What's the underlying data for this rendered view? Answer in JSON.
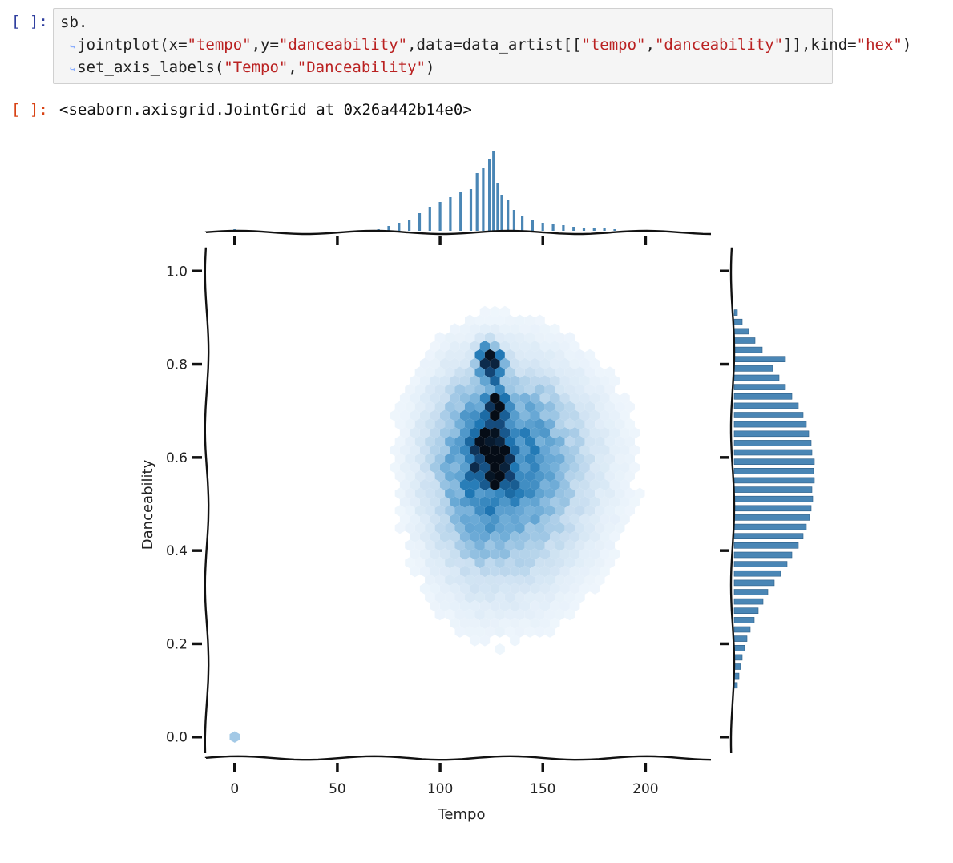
{
  "cell": {
    "in_prompt": "[ ]:",
    "out_prompt": "[ ]:",
    "code_lines": [
      [
        {
          "t": "sb.",
          "k": "plain"
        }
      ],
      [
        {
          "t": "jointplot(x=",
          "k": "plain"
        },
        {
          "t": "\"tempo\"",
          "k": "str"
        },
        {
          "t": ",y=",
          "k": "plain"
        },
        {
          "t": "\"danceability\"",
          "k": "str"
        },
        {
          "t": ",data=data_artist[[",
          "k": "plain"
        },
        {
          "t": "\"tempo\"",
          "k": "str"
        },
        {
          "t": ",",
          "k": "plain"
        },
        {
          "t": "\"danceability\"",
          "k": "str"
        },
        {
          "t": "]],kind=",
          "k": "plain"
        },
        {
          "t": "\"hex\"",
          "k": "str"
        },
        {
          "t": ")",
          "k": "plain"
        }
      ],
      [
        {
          "t": "set_axis_labels(",
          "k": "plain"
        },
        {
          "t": "\"Tempo\"",
          "k": "str"
        },
        {
          "t": ",",
          "k": "plain"
        },
        {
          "t": "\"Danceability\"",
          "k": "str"
        },
        {
          "t": ")",
          "k": "plain"
        }
      ]
    ],
    "continuation_marker": "↪",
    "output_text": "<seaborn.axisgrid.JointGrid at 0x26a442b14e0>"
  },
  "chart_data": {
    "type": "heatmap",
    "subtype": "seaborn jointplot (hexbin with marginal histograms), xkcd style",
    "xlabel": "Tempo",
    "ylabel": "Danceability",
    "xlim": [
      -12,
      233
    ],
    "ylim": [
      -0.04,
      1.04
    ],
    "xticks": [
      0,
      50,
      100,
      150,
      200
    ],
    "xtick_labels": [
      "0",
      "50",
      "100",
      "150",
      "200"
    ],
    "yticks": [
      0.0,
      0.2,
      0.4,
      0.6,
      0.8,
      1.0
    ],
    "ytick_labels": [
      "0.0",
      "0.2",
      "0.4",
      "0.6",
      "0.8",
      "1.0"
    ],
    "hex_color": "#1f77b4",
    "marginal_color": "#4a86b5",
    "density_peak": {
      "tempo": 125,
      "danceability": 0.6
    },
    "density_spread": {
      "tempo_left": 20,
      "tempo_right": 30,
      "danceability_low": 0.17,
      "danceability_high": 0.13
    },
    "hot_spots": [
      {
        "tempo": 123,
        "danceability": 0.81,
        "weight": 1.0
      },
      {
        "tempo": 126,
        "danceability": 0.8,
        "weight": 1.0
      },
      {
        "tempo": 127,
        "danceability": 0.7,
        "weight": 0.9
      },
      {
        "tempo": 129,
        "danceability": 0.58,
        "weight": 0.9
      },
      {
        "tempo": 125,
        "danceability": 0.66,
        "weight": 0.7
      },
      {
        "tempo": 122,
        "danceability": 0.6,
        "weight": 0.6
      }
    ],
    "outlier_cluster": {
      "tempo": 0,
      "danceability": 0.0,
      "intensity": 0.35
    },
    "top_marginal": {
      "bins_tempo": [
        0,
        70,
        75,
        80,
        85,
        90,
        95,
        100,
        105,
        110,
        115,
        118,
        121,
        124,
        126,
        128,
        130,
        133,
        136,
        140,
        145,
        150,
        155,
        160,
        165,
        170,
        175,
        180,
        185
      ],
      "counts_rel": [
        0.02,
        0.02,
        0.06,
        0.1,
        0.14,
        0.22,
        0.3,
        0.36,
        0.42,
        0.48,
        0.52,
        0.72,
        0.78,
        0.9,
        1.0,
        0.6,
        0.45,
        0.38,
        0.26,
        0.18,
        0.14,
        0.1,
        0.08,
        0.07,
        0.05,
        0.04,
        0.04,
        0.03,
        0.02
      ]
    },
    "right_marginal": {
      "bins_danceability": [
        0.11,
        0.13,
        0.15,
        0.17,
        0.19,
        0.21,
        0.23,
        0.25,
        0.27,
        0.29,
        0.31,
        0.33,
        0.35,
        0.37,
        0.39,
        0.41,
        0.43,
        0.45,
        0.47,
        0.49,
        0.51,
        0.53,
        0.55,
        0.57,
        0.59,
        0.61,
        0.63,
        0.65,
        0.67,
        0.69,
        0.71,
        0.73,
        0.75,
        0.77,
        0.79,
        0.81,
        0.83,
        0.85,
        0.87,
        0.89,
        0.91
      ],
      "counts_rel": [
        0.04,
        0.06,
        0.08,
        0.1,
        0.13,
        0.16,
        0.2,
        0.25,
        0.3,
        0.36,
        0.42,
        0.5,
        0.58,
        0.66,
        0.72,
        0.8,
        0.86,
        0.9,
        0.94,
        0.96,
        0.98,
        0.97,
        1.0,
        0.99,
        1.0,
        0.97,
        0.96,
        0.93,
        0.9,
        0.86,
        0.8,
        0.72,
        0.64,
        0.56,
        0.48,
        0.64,
        0.35,
        0.26,
        0.18,
        0.1,
        0.04
      ]
    }
  }
}
